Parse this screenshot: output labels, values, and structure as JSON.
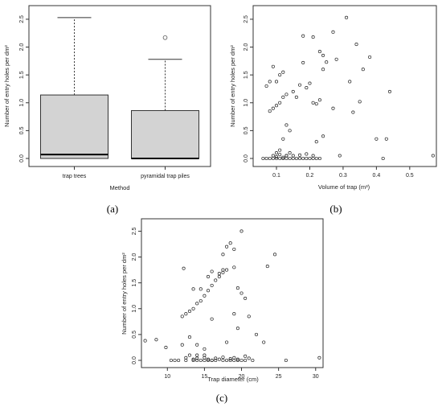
{
  "chart_data": [
    {
      "type": "box",
      "panel_label": "(a)",
      "xlabel": "Method",
      "ylabel": "Number of entry holes per dm²",
      "ylim": [
        0,
        2.6
      ],
      "yticks": [
        "0.0",
        "0.5",
        "1.0",
        "1.5",
        "2.0",
        "2.5"
      ],
      "grid": false,
      "categories": [
        "trap trees",
        "pyramidal trap piles"
      ],
      "boxes": [
        {
          "category": "trap trees",
          "min": 0.0,
          "q1": 0.0,
          "median": 0.07,
          "q3": 1.14,
          "max": 2.53,
          "outliers": []
        },
        {
          "category": "pyramidal trap piles",
          "min": 0.0,
          "q1": 0.0,
          "median": 0.0,
          "q3": 0.86,
          "max": 1.78,
          "outliers": [
            2.17
          ]
        }
      ],
      "box_color": "#d3d3d3"
    },
    {
      "type": "scatter",
      "panel_label": "(b)",
      "xlabel": "Volume of trap (m³)",
      "ylabel": "Number of entry holes per dm²",
      "xlim": [
        0.03,
        0.58
      ],
      "ylim": [
        0,
        2.6
      ],
      "xticks": [
        "0.1",
        "0.2",
        "0.3",
        "0.4",
        "0.5"
      ],
      "yticks": [
        "0.0",
        "0.5",
        "1.0",
        "1.5",
        "2.0",
        "2.5"
      ],
      "grid": false,
      "x": [
        0.06,
        0.07,
        0.08,
        0.09,
        0.1,
        0.11,
        0.12,
        0.13,
        0.14,
        0.15,
        0.16,
        0.17,
        0.18,
        0.19,
        0.2,
        0.21,
        0.22,
        0.23,
        0.09,
        0.1,
        0.11,
        0.12,
        0.13,
        0.14,
        0.1,
        0.11,
        0.13,
        0.15,
        0.17,
        0.19,
        0.21,
        0.22,
        0.24,
        0.12,
        0.13,
        0.14,
        0.08,
        0.09,
        0.1,
        0.11,
        0.12,
        0.13,
        0.07,
        0.08,
        0.09,
        0.1,
        0.11,
        0.12,
        0.15,
        0.17,
        0.18,
        0.19,
        0.2,
        0.21,
        0.22,
        0.23,
        0.24,
        0.25,
        0.27,
        0.28,
        0.31,
        0.32,
        0.34,
        0.36,
        0.38,
        0.4,
        0.42,
        0.44,
        0.57,
        0.33,
        0.27,
        0.18,
        0.16,
        0.21,
        0.23,
        0.24,
        0.35,
        0.43,
        0.29
      ],
      "y": [
        0,
        0,
        0,
        0,
        0,
        0,
        0,
        0,
        0,
        0,
        0,
        0,
        0,
        0,
        0,
        0,
        0,
        0,
        0.05,
        0.03,
        0.07,
        0.02,
        0.05,
        0.1,
        0.1,
        0.15,
        0.05,
        0.05,
        0.06,
        0.08,
        0.05,
        0.3,
        0.4,
        0.35,
        0.6,
        0.5,
        0.85,
        0.9,
        0.95,
        1.0,
        1.1,
        1.15,
        1.3,
        1.38,
        1.65,
        1.38,
        1.5,
        1.55,
        1.2,
        1.32,
        1.72,
        1.27,
        1.35,
        1.0,
        0.98,
        1.05,
        1.6,
        1.73,
        0.9,
        1.78,
        2.53,
        1.38,
        2.05,
        1.6,
        1.82,
        0.35,
        0.0,
        1.2,
        0.05,
        0.83,
        2.27,
        2.2,
        1.1,
        2.18,
        1.92,
        1.85,
        1.02,
        0.35,
        0.05
      ],
      "marker": "open-circle"
    },
    {
      "type": "scatter",
      "panel_label": "(c)",
      "xlabel": "Trap diameter (cm)",
      "ylabel": "Number of entry holes per dm²",
      "xlim": [
        6.5,
        31
      ],
      "ylim": [
        0,
        2.6
      ],
      "xticks": [
        "10",
        "15",
        "20",
        "25",
        "30"
      ],
      "yticks": [
        "0.0",
        "0.5",
        "1.0",
        "1.5",
        "2.0",
        "2.5"
      ],
      "grid": false,
      "x": [
        7,
        8.5,
        9.8,
        11,
        12,
        12.5,
        13,
        13.5,
        14,
        14.5,
        15,
        15.5,
        16,
        16.5,
        17,
        17.5,
        18,
        18.5,
        19,
        19.5,
        20,
        20.5,
        21,
        10.5,
        11.5,
        12.5,
        13.5,
        14,
        15,
        15.5,
        16,
        16.5,
        17.5,
        18.5,
        19,
        19.5,
        20.5,
        21.5,
        12,
        12.5,
        13,
        13.5,
        14,
        14.5,
        15,
        15.5,
        16,
        16.5,
        17,
        17.5,
        18,
        19,
        19.5,
        20,
        20.5,
        12.2,
        13.5,
        14.5,
        15.5,
        16,
        17,
        17.5,
        18,
        18.5,
        19,
        20,
        21,
        22,
        23,
        23.5,
        24.5,
        26,
        30.5,
        14,
        15,
        16,
        17.5,
        18,
        19,
        19.5,
        13,
        14,
        15
      ],
      "y": [
        0.38,
        0.4,
        0.25,
        0,
        0.3,
        0.05,
        0.1,
        0.02,
        0.04,
        0,
        0.05,
        0.02,
        0,
        0.04,
        0.02,
        0.06,
        0,
        0.03,
        0.05,
        0.02,
        0,
        0.08,
        0.04,
        0,
        0,
        0,
        0,
        0,
        0,
        0,
        0,
        0,
        0,
        0,
        0,
        0,
        0,
        0,
        0.85,
        0.9,
        0.95,
        1.0,
        1.1,
        1.15,
        1.25,
        1.35,
        1.45,
        1.55,
        1.62,
        1.7,
        1.75,
        1.8,
        1.4,
        1.3,
        1.2,
        1.78,
        1.38,
        1.38,
        1.62,
        1.72,
        1.68,
        2.05,
        2.2,
        2.27,
        2.15,
        2.5,
        0.85,
        0.5,
        0.35,
        1.82,
        2.05,
        0,
        0.05,
        0.3,
        0.22,
        0.8,
        1.75,
        0.35,
        0.9,
        0.62,
        0.45,
        0.1,
        0.1
      ],
      "marker": "open-circle"
    }
  ]
}
